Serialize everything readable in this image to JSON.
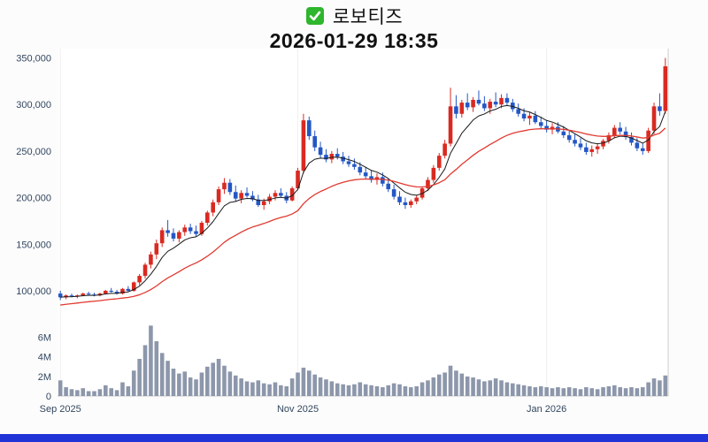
{
  "header": {
    "title": "로보티즈",
    "datetime": "2026-01-29 18:35",
    "checkbox_icon": "green-checkbox"
  },
  "colors": {
    "up": "#d92a21",
    "down": "#2457c5",
    "ma_short": "#1a1a1a",
    "ma_long": "#e03a30",
    "volume": "#8d97ab",
    "axis_text": "#33475e",
    "frame": "#cccccc",
    "grid": "#efefef",
    "checkbox_green": "#2eb62c",
    "bottom_bar": "#2033d6",
    "background": "#fcfcfd",
    "plot_bg": "#ffffff"
  },
  "chart_data": {
    "type": "candlestick",
    "title": "로보티즈",
    "timestamp": "2026-01-29 18:35",
    "legend_position": "none",
    "grid": "off",
    "price_axis": {
      "min": 80000,
      "max": 360000,
      "ticks": [
        {
          "value": 350000,
          "label": "350,000"
        },
        {
          "value": 300000,
          "label": "300,000"
        },
        {
          "value": 250000,
          "label": "250,000"
        },
        {
          "value": 200000,
          "label": "200,000"
        },
        {
          "value": 150000,
          "label": "150,000"
        },
        {
          "value": 100000,
          "label": "100,000"
        }
      ]
    },
    "volume_axis": {
      "min": 0,
      "max": 7.5,
      "unit": "M",
      "ticks": [
        {
          "value": 6,
          "label": "6M"
        },
        {
          "value": 4,
          "label": "4M"
        },
        {
          "value": 2,
          "label": "2M"
        },
        {
          "value": 0,
          "label": "0"
        }
      ]
    },
    "x_ticks": [
      {
        "index": 0,
        "label": "Sep 2025"
      },
      {
        "index": 42,
        "label": "Nov 2025"
      },
      {
        "index": 86,
        "label": "Jan 2026"
      }
    ],
    "moving_averages": [
      {
        "type": "ema",
        "window": 7,
        "color_key": "ma_short",
        "seed": 93000,
        "width": 1
      },
      {
        "type": "ema",
        "window": 25,
        "color_key": "ma_long",
        "seed": 84000,
        "width": 1.3
      }
    ],
    "candles_format": [
      "open",
      "high",
      "low",
      "close",
      "volume_millions"
    ],
    "candles": [
      [
        97000,
        100000,
        90000,
        93000,
        1.6
      ],
      [
        93000,
        96000,
        91000,
        95000,
        0.9
      ],
      [
        95000,
        97000,
        93000,
        94000,
        0.7
      ],
      [
        94000,
        96000,
        92000,
        95000,
        0.6
      ],
      [
        95000,
        98000,
        94000,
        97000,
        0.8
      ],
      [
        97000,
        99000,
        95000,
        96000,
        0.5
      ],
      [
        96000,
        98000,
        94000,
        95000,
        0.5
      ],
      [
        95000,
        98000,
        94000,
        97000,
        0.7
      ],
      [
        97000,
        101000,
        96000,
        100000,
        1.1
      ],
      [
        100000,
        103000,
        98000,
        99000,
        0.8
      ],
      [
        99000,
        101000,
        96000,
        97000,
        0.6
      ],
      [
        97000,
        103000,
        96000,
        102000,
        1.4
      ],
      [
        102000,
        105000,
        99000,
        100000,
        1.0
      ],
      [
        100000,
        110000,
        99000,
        109000,
        2.6
      ],
      [
        109000,
        118000,
        106000,
        116000,
        3.8
      ],
      [
        116000,
        130000,
        113000,
        128000,
        5.2
      ],
      [
        128000,
        142000,
        124000,
        139000,
        7.2
      ],
      [
        139000,
        155000,
        134000,
        151000,
        5.6
      ],
      [
        151000,
        168000,
        147000,
        165000,
        4.4
      ],
      [
        165000,
        176000,
        158000,
        162000,
        3.6
      ],
      [
        162000,
        167000,
        153000,
        156000,
        2.8
      ],
      [
        156000,
        165000,
        152000,
        163000,
        2.3
      ],
      [
        163000,
        171000,
        159000,
        168000,
        2.5
      ],
      [
        168000,
        172000,
        161000,
        164000,
        1.9
      ],
      [
        164000,
        170000,
        158000,
        161000,
        1.7
      ],
      [
        161000,
        175000,
        159000,
        173000,
        2.4
      ],
      [
        173000,
        186000,
        170000,
        184000,
        3.0
      ],
      [
        184000,
        198000,
        180000,
        195000,
        3.4
      ],
      [
        195000,
        212000,
        192000,
        209000,
        3.8
      ],
      [
        209000,
        221000,
        204000,
        216000,
        3.1
      ],
      [
        216000,
        220000,
        203000,
        206000,
        2.5
      ],
      [
        206000,
        213000,
        196000,
        199000,
        2.1
      ],
      [
        199000,
        208000,
        194000,
        205000,
        1.8
      ],
      [
        205000,
        211000,
        200000,
        202000,
        1.5
      ],
      [
        202000,
        207000,
        196000,
        198000,
        1.4
      ],
      [
        198000,
        203000,
        190000,
        192000,
        1.6
      ],
      [
        192000,
        199000,
        187000,
        196000,
        1.3
      ],
      [
        196000,
        204000,
        193000,
        201000,
        1.2
      ],
      [
        201000,
        208000,
        197000,
        205000,
        1.4
      ],
      [
        205000,
        210000,
        200000,
        202000,
        1.1
      ],
      [
        202000,
        206000,
        194000,
        197000,
        1.0
      ],
      [
        197000,
        212000,
        196000,
        210000,
        1.8
      ],
      [
        210000,
        232000,
        208000,
        229000,
        2.4
      ],
      [
        229000,
        290000,
        226000,
        283000,
        2.9
      ],
      [
        283000,
        287000,
        262000,
        266000,
        2.6
      ],
      [
        266000,
        272000,
        250000,
        254000,
        2.2
      ],
      [
        254000,
        260000,
        242000,
        246000,
        1.9
      ],
      [
        246000,
        252000,
        238000,
        241000,
        1.7
      ],
      [
        241000,
        250000,
        237000,
        247000,
        1.5
      ],
      [
        247000,
        253000,
        241000,
        244000,
        1.3
      ],
      [
        244000,
        249000,
        236000,
        239000,
        1.2
      ],
      [
        239000,
        245000,
        233000,
        236000,
        1.1
      ],
      [
        236000,
        242000,
        230000,
        233000,
        1.2
      ],
      [
        233000,
        238000,
        224000,
        227000,
        1.4
      ],
      [
        227000,
        233000,
        220000,
        223000,
        1.2
      ],
      [
        223000,
        229000,
        216000,
        219000,
        1.1
      ],
      [
        219000,
        226000,
        214000,
        222000,
        1.0
      ],
      [
        222000,
        227000,
        212000,
        215000,
        0.9
      ],
      [
        215000,
        220000,
        206000,
        209000,
        1.1
      ],
      [
        209000,
        214000,
        198000,
        201000,
        1.3
      ],
      [
        201000,
        207000,
        192000,
        195000,
        1.2
      ],
      [
        195000,
        200000,
        188000,
        192000,
        1.0
      ],
      [
        192000,
        198000,
        189000,
        196000,
        0.9
      ],
      [
        196000,
        203000,
        193000,
        200000,
        1.0
      ],
      [
        200000,
        212000,
        198000,
        210000,
        1.4
      ],
      [
        210000,
        222000,
        207000,
        219000,
        1.6
      ],
      [
        219000,
        235000,
        216000,
        232000,
        1.9
      ],
      [
        232000,
        248000,
        229000,
        245000,
        2.2
      ],
      [
        245000,
        262000,
        242000,
        258000,
        2.4
      ],
      [
        258000,
        318000,
        255000,
        298000,
        3.1
      ],
      [
        298000,
        310000,
        285000,
        290000,
        2.6
      ],
      [
        290000,
        305000,
        286000,
        302000,
        2.3
      ],
      [
        302000,
        312000,
        294000,
        297000,
        2.0
      ],
      [
        297000,
        308000,
        292000,
        305000,
        1.9
      ],
      [
        305000,
        315000,
        299000,
        301000,
        1.7
      ],
      [
        301000,
        309000,
        293000,
        296000,
        1.5
      ],
      [
        296000,
        306000,
        290000,
        303000,
        1.6
      ],
      [
        303000,
        313000,
        297000,
        300000,
        1.8
      ],
      [
        300000,
        311000,
        296000,
        307000,
        1.6
      ],
      [
        307000,
        312000,
        299000,
        302000,
        1.4
      ],
      [
        302000,
        306000,
        292000,
        295000,
        1.3
      ],
      [
        295000,
        301000,
        287000,
        290000,
        1.2
      ],
      [
        290000,
        296000,
        282000,
        285000,
        1.1
      ],
      [
        285000,
        292000,
        278000,
        288000,
        1.0
      ],
      [
        288000,
        293000,
        279000,
        281000,
        0.9
      ],
      [
        281000,
        287000,
        274000,
        277000,
        1.0
      ],
      [
        277000,
        283000,
        270000,
        273000,
        0.9
      ],
      [
        273000,
        280000,
        268000,
        276000,
        0.8
      ],
      [
        276000,
        281000,
        269000,
        271000,
        0.9
      ],
      [
        271000,
        277000,
        264000,
        267000,
        0.8
      ],
      [
        267000,
        272000,
        259000,
        262000,
        0.9
      ],
      [
        262000,
        268000,
        255000,
        258000,
        0.8
      ],
      [
        258000,
        264000,
        251000,
        254000,
        0.7
      ],
      [
        254000,
        259000,
        246000,
        249000,
        0.9
      ],
      [
        249000,
        256000,
        244000,
        252000,
        0.8
      ],
      [
        252000,
        258000,
        247000,
        255000,
        0.7
      ],
      [
        255000,
        263000,
        252000,
        261000,
        0.9
      ],
      [
        261000,
        270000,
        258000,
        267000,
        1.0
      ],
      [
        267000,
        278000,
        264000,
        275000,
        1.1
      ],
      [
        275000,
        281000,
        268000,
        271000,
        0.9
      ],
      [
        271000,
        276000,
        262000,
        265000,
        0.8
      ],
      [
        265000,
        270000,
        256000,
        259000,
        0.9
      ],
      [
        259000,
        264000,
        250000,
        253000,
        0.8
      ],
      [
        253000,
        258000,
        246000,
        250000,
        0.9
      ],
      [
        250000,
        275000,
        248000,
        272000,
        1.4
      ],
      [
        272000,
        302000,
        268000,
        298000,
        1.8
      ],
      [
        298000,
        312000,
        288000,
        293000,
        1.6
      ],
      [
        293000,
        350000,
        290000,
        341000,
        2.1
      ]
    ]
  }
}
